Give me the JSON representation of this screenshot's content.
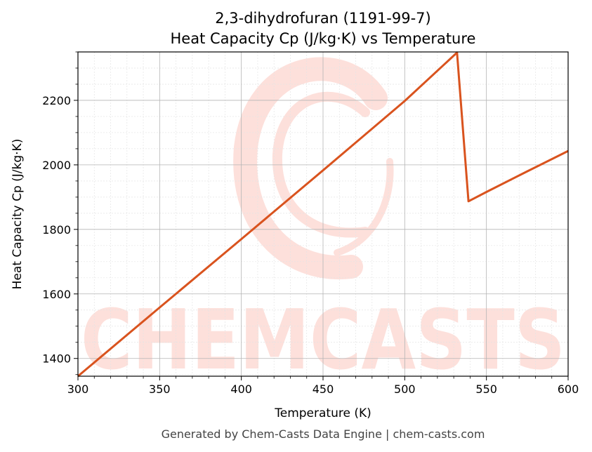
{
  "chart_data": {
    "type": "line",
    "title": "2,3-dihydrofuran (1191-99-7)",
    "subtitle": "Heat Capacity Cp (J/kg·K) vs Temperature",
    "xlabel": "Temperature (K)",
    "ylabel": "Heat Capacity Cp (J/kg·K)",
    "xlim": [
      300,
      600
    ],
    "ylim": [
      1345,
      2350
    ],
    "x_ticks": [
      300,
      350,
      400,
      450,
      500,
      550,
      600
    ],
    "y_ticks": [
      1400,
      1600,
      1800,
      2000,
      2200
    ],
    "grid": true,
    "line_color": "#d9531e",
    "series": [
      {
        "x": [
          300,
          350,
          400,
          450,
          500,
          532,
          539,
          550,
          575,
          600
        ],
        "values": [
          1345,
          1558,
          1770,
          1983,
          2198,
          2348,
          1887,
          1916,
          1980,
          2043
        ]
      }
    ]
  },
  "watermark": {
    "text": "CHEMCASTS",
    "color": "#fde0db"
  },
  "footer": "Generated by Chem-Casts Data Engine | chem-casts.com"
}
